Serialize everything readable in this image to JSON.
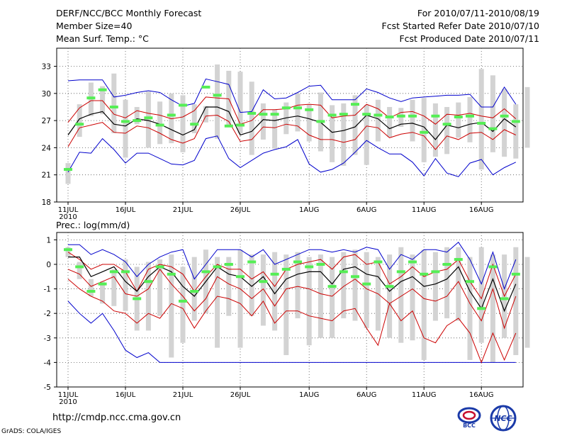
{
  "header": {
    "title": "DERF/NCC/BCC Monthly Forecast",
    "member": "Member Size=40",
    "variable": "Mean Surf. Temp.: °C",
    "period": "For 2010/07/11-2010/08/19",
    "refer": "Fcst Started Refer Date 2010/07/10",
    "produced": "Fcst Produced Date 2010/07/11"
  },
  "footer": {
    "url": "http://cmdp.ncc.cma.gov.cn",
    "credit": "GrADS: COLA/IGES",
    "logo_bcc": "BCC",
    "logo_ncc": "NCC"
  },
  "colors": {
    "bar": "#d3d3d3",
    "mean": "#000000",
    "std": "#cc0000",
    "extreme": "#0000cc",
    "obs": "#55ee55",
    "grid": "#555555"
  },
  "chart_data": [
    {
      "type": "line",
      "title": "Mean Surf. Temp.: °C",
      "x_labels": [
        {
          "day": 0,
          "label": "11JUL",
          "sub": "2010"
        },
        {
          "day": 5,
          "label": "16JUL"
        },
        {
          "day": 10,
          "label": "21JUL"
        },
        {
          "day": 15,
          "label": "26JUL"
        },
        {
          "day": 21,
          "label": "1AUG"
        },
        {
          "day": 26,
          "label": "6AUG"
        },
        {
          "day": 31,
          "label": "11AUG"
        },
        {
          "day": 36,
          "label": "16AUG"
        }
      ],
      "ylim": [
        18,
        35
      ],
      "yticks": [
        18,
        21,
        24,
        27,
        30,
        33
      ],
      "days": [
        0,
        1,
        2,
        3,
        4,
        5,
        6,
        7,
        8,
        9,
        10,
        11,
        12,
        13,
        14,
        15,
        16,
        17,
        18,
        19,
        20,
        21,
        22,
        23,
        24,
        25,
        26,
        27,
        28,
        29,
        30,
        31,
        32,
        33,
        34,
        35,
        36,
        37,
        38,
        39
      ],
      "member_max": [
        31.4,
        31.5,
        31.5,
        31.5,
        29.6,
        29.8,
        30.1,
        30.3,
        30.1,
        29.3,
        28.6,
        28.9,
        31.6,
        31.3,
        31.0,
        27.9,
        28.0,
        30.4,
        29.4,
        29.5,
        30.1,
        30.8,
        30.9,
        29.3,
        29.3,
        29.3,
        30.5,
        30.1,
        29.5,
        29.1,
        29.5,
        29.6,
        29.7,
        29.8,
        29.8,
        29.9,
        28.5,
        28.5,
        30.7,
        28.8
      ],
      "std_upper": [
        26.8,
        28.4,
        29.2,
        29.2,
        27.7,
        27.3,
        28.1,
        27.8,
        27.6,
        27.2,
        27.4,
        28.1,
        29.6,
        29.5,
        29.4,
        26.6,
        27.0,
        28.2,
        28.2,
        28.3,
        28.7,
        28.8,
        28.7,
        27.3,
        27.5,
        27.6,
        28.8,
        28.3,
        27.3,
        27.9,
        28.0,
        27.5,
        26.6,
        27.7,
        27.6,
        27.8,
        27.5,
        27.3,
        28.3,
        27.2
      ],
      "ens_mean": [
        25.4,
        27.2,
        27.7,
        28.0,
        26.6,
        26.4,
        27.2,
        27.0,
        26.6,
        26.0,
        25.4,
        26.0,
        28.5,
        28.5,
        28.0,
        25.4,
        25.8,
        27.1,
        27.0,
        27.3,
        27.5,
        27.2,
        26.8,
        25.7,
        25.9,
        26.3,
        27.6,
        27.2,
        26.1,
        26.6,
        26.7,
        26.3,
        24.9,
        26.5,
        26.2,
        26.6,
        26.8,
        25.8,
        27.2,
        26.3
      ],
      "std_lower": [
        24.1,
        26.2,
        26.5,
        26.8,
        25.7,
        25.6,
        26.4,
        26.2,
        25.6,
        24.9,
        24.5,
        25.0,
        27.5,
        27.6,
        26.9,
        24.7,
        24.9,
        26.3,
        26.2,
        26.6,
        26.4,
        25.4,
        24.9,
        24.9,
        24.6,
        24.9,
        26.4,
        26.2,
        25.1,
        25.5,
        25.7,
        25.3,
        23.8,
        25.3,
        24.9,
        25.6,
        25.7,
        24.9,
        26.0,
        25.4
      ],
      "member_min": [
        21.3,
        23.5,
        23.4,
        25.0,
        23.8,
        22.3,
        23.4,
        23.4,
        22.8,
        22.2,
        22.1,
        22.6,
        25.0,
        25.3,
        22.8,
        21.8,
        22.6,
        23.4,
        23.8,
        24.1,
        24.9,
        22.2,
        21.3,
        21.6,
        22.3,
        23.5,
        24.8,
        24.0,
        23.3,
        23.3,
        22.4,
        20.9,
        22.8,
        21.2,
        20.8,
        22.3,
        22.7,
        21.0,
        21.8,
        22.4
      ],
      "box_high": [
        22.3,
        28.8,
        31.2,
        30.8,
        32.2,
        29.3,
        28.5,
        30.2,
        29.1,
        30.0,
        29.8,
        28.8,
        28.6,
        33.2,
        32.5,
        32.4,
        31.3,
        28.9,
        28.2,
        29.0,
        30.0,
        28.8,
        30.1,
        28.7,
        28.9,
        29.8,
        28.7,
        29.3,
        28.5,
        28.4,
        29.3,
        29.5,
        28.9,
        28.5,
        29.0,
        29.6,
        32.7,
        32.0,
        30.5,
        28.8,
        30.7
      ],
      "box_low": [
        20.0,
        25.2,
        27.5,
        27.7,
        25.6,
        22.9,
        26.6,
        24.0,
        24.4,
        24.5,
        23.5,
        25.6,
        26.8,
        25.0,
        26.5,
        25.6,
        23.2,
        24.9,
        23.9,
        25.5,
        25.8,
        24.7,
        23.6,
        22.4,
        22.0,
        23.2,
        22.1,
        24.7,
        25.2,
        26.3,
        24.7,
        22.4,
        23.0,
        23.3,
        25.1,
        24.6,
        21.6,
        23.5,
        23.0,
        22.8,
        24.0
      ],
      "obs": [
        21.6,
        26.6,
        29.5,
        30.4,
        28.5,
        26.9,
        27.0,
        27.3,
        26.5,
        27.6,
        28.7,
        26.6,
        30.7,
        29.8,
        26.4,
        26.5,
        27.8,
        27.7,
        27.7,
        28.4,
        28.4,
        28.2,
        26.9,
        27.6,
        27.7,
        28.8,
        27.7,
        27.6,
        27.4,
        27.5,
        27.5,
        25.7,
        27.5,
        26.6,
        27.4,
        27.5,
        26.7,
        26.1,
        27.5,
        26.9
      ]
    },
    {
      "type": "line",
      "title": "Prec.: log(mm/d)",
      "x_labels": [
        {
          "day": 0,
          "label": "11JUL",
          "sub": "2010"
        },
        {
          "day": 5,
          "label": "16JUL"
        },
        {
          "day": 10,
          "label": "21JUL"
        },
        {
          "day": 15,
          "label": "26JUL"
        },
        {
          "day": 21,
          "label": "1AUG"
        },
        {
          "day": 26,
          "label": "6AUG"
        },
        {
          "day": 31,
          "label": "11AUG"
        },
        {
          "day": 36,
          "label": "16AUG"
        }
      ],
      "ylim": [
        -5,
        1.3
      ],
      "yticks": [
        -5,
        -4,
        -3,
        -2,
        -1,
        0,
        1
      ],
      "days": [
        0,
        1,
        2,
        3,
        4,
        5,
        6,
        7,
        8,
        9,
        10,
        11,
        12,
        13,
        14,
        15,
        16,
        17,
        18,
        19,
        20,
        21,
        22,
        23,
        24,
        25,
        26,
        27,
        28,
        29,
        30,
        31,
        32,
        33,
        34,
        35,
        36,
        37,
        38,
        39
      ],
      "member_max": [
        0.8,
        0.8,
        0.4,
        0.6,
        0.4,
        0.1,
        -0.5,
        0.0,
        0.3,
        0.5,
        0.6,
        -0.6,
        0.0,
        0.6,
        0.6,
        0.6,
        0.3,
        0.6,
        0.0,
        0.2,
        0.4,
        0.6,
        0.6,
        0.5,
        0.6,
        0.5,
        0.7,
        0.6,
        -0.2,
        0.4,
        0.2,
        0.6,
        0.6,
        0.5,
        0.9,
        0.2,
        -0.8,
        0.5,
        -1.0,
        0.2
      ],
      "std_upper": [
        0.5,
        0.2,
        -0.2,
        0.0,
        0.0,
        -0.3,
        -1.1,
        -0.2,
        0.0,
        -0.1,
        -0.4,
        -1.1,
        -0.5,
        0.0,
        -0.2,
        -0.2,
        -0.6,
        -0.3,
        -0.9,
        -0.2,
        0.0,
        0.1,
        0.2,
        -0.2,
        0.3,
        0.4,
        0.0,
        0.1,
        -0.8,
        -0.5,
        -0.1,
        -0.5,
        -0.3,
        -0.2,
        0.2,
        -0.7,
        -1.4,
        0.0,
        -1.3,
        -0.4
      ],
      "ens_mean": [
        0.3,
        0.3,
        -0.5,
        -0.3,
        -0.1,
        -0.7,
        -1.1,
        -0.5,
        -0.1,
        -0.3,
        -0.9,
        -1.3,
        -0.7,
        -0.1,
        -0.4,
        -0.5,
        -0.9,
        -0.5,
        -1.2,
        -0.6,
        -0.4,
        -0.3,
        -0.3,
        -0.8,
        -0.2,
        -0.1,
        -0.4,
        -0.5,
        -1.1,
        -0.7,
        -0.5,
        -0.9,
        -0.8,
        -0.6,
        -0.1,
        -1.1,
        -1.8,
        -0.6,
        -1.9,
        -0.8
      ],
      "std_lower": [
        -0.2,
        -0.4,
        -0.9,
        -0.7,
        -0.5,
        -1.2,
        -1.3,
        -1.0,
        -0.2,
        -0.8,
        -1.3,
        -1.9,
        -1.4,
        -0.5,
        -0.8,
        -1.0,
        -1.4,
        -1.0,
        -1.7,
        -1.0,
        -0.9,
        -1.0,
        -1.2,
        -1.3,
        -0.9,
        -0.6,
        -1.0,
        -1.2,
        -1.6,
        -1.3,
        -1.0,
        -1.4,
        -1.5,
        -1.3,
        -0.7,
        -1.6,
        -2.3,
        -1.0,
        -2.6,
        -1.3
      ],
      "min_spread": [
        -1.5,
        -2.0,
        -2.4,
        -2.0,
        -2.7,
        -3.5,
        -3.8,
        -3.6,
        -4.0,
        -4.0,
        -4.0,
        -4.0,
        -4.0,
        -4.0,
        -4.0,
        -4.0,
        -4.0,
        -4.0,
        -4.0,
        -4.0,
        -4.0,
        -4.0,
        -4.0,
        -4.0,
        -4.0,
        -4.0,
        -4.0,
        -4.0,
        -4.0,
        -4.0,
        -4.0,
        -4.0,
        -4.0,
        -4.0,
        -4.0,
        -4.0,
        -4.0,
        -4.0,
        -4.0,
        -4.0
      ],
      "red_low": [
        -0.6,
        -1.0,
        -1.3,
        -1.5,
        -1.9,
        -2.0,
        -2.4,
        -2.0,
        -2.2,
        -1.6,
        -1.8,
        -2.6,
        -1.9,
        -1.3,
        -1.4,
        -1.6,
        -2.1,
        -1.5,
        -2.4,
        -1.9,
        -1.9,
        -2.1,
        -2.2,
        -2.3,
        -1.9,
        -1.8,
        -2.6,
        -3.3,
        -1.6,
        -2.3,
        -1.9,
        -3.0,
        -3.2,
        -2.5,
        -2.2,
        -2.8,
        -4.0,
        -2.8,
        -3.9,
        -2.8
      ],
      "box_high": [
        0.7,
        0.1,
        -0.6,
        -0.7,
        -0.2,
        0.2,
        -0.1,
        0.1,
        0.2,
        0.4,
        -0.1,
        0.3,
        0.6,
        0.3,
        0.3,
        0.6,
        0.4,
        0.4,
        0.5,
        0.4,
        0.5,
        0.3,
        0.4,
        0.3,
        0.5,
        0.6,
        0.5,
        0.3,
        0.4,
        0.7,
        0.4,
        0.6,
        0.5,
        0.7,
        0.7,
        0.3,
        0.7,
        0.4,
        0.4,
        0.7,
        0.3
      ],
      "box_low": [
        0.3,
        -0.6,
        -1.3,
        -1.6,
        -1.7,
        -1.9,
        -2.7,
        -2.7,
        -2.1,
        -3.8,
        -3.2,
        -2.3,
        -2.0,
        -3.4,
        -2.1,
        -3.4,
        -2.1,
        -2.5,
        -2.7,
        -3.7,
        -2.2,
        -3.3,
        -3.0,
        -3.0,
        -2.2,
        -2.3,
        -2.6,
        -2.7,
        -3.0,
        -3.2,
        -3.1,
        -3.9,
        -2.3,
        -2.2,
        -2.3,
        -3.9,
        -3.2,
        -4.0,
        -3.0,
        -3.7,
        -3.4
      ],
      "obs": [
        0.6,
        -0.1,
        -1.1,
        -0.8,
        -0.3,
        -0.3,
        -1.4,
        -0.7,
        -0.1,
        -0.4,
        -1.5,
        -1.1,
        -0.3,
        -0.1,
        0.0,
        -0.5,
        0.1,
        -0.7,
        -0.4,
        -0.2,
        0.1,
        -0.1,
        0.0,
        -0.9,
        -0.3,
        -0.5,
        -0.8,
        0.1,
        -0.9,
        -0.3,
        0.1,
        -0.4,
        -0.3,
        0.0,
        0.2,
        -0.7,
        -1.8,
        -0.1,
        -1.4,
        -0.4
      ]
    }
  ]
}
